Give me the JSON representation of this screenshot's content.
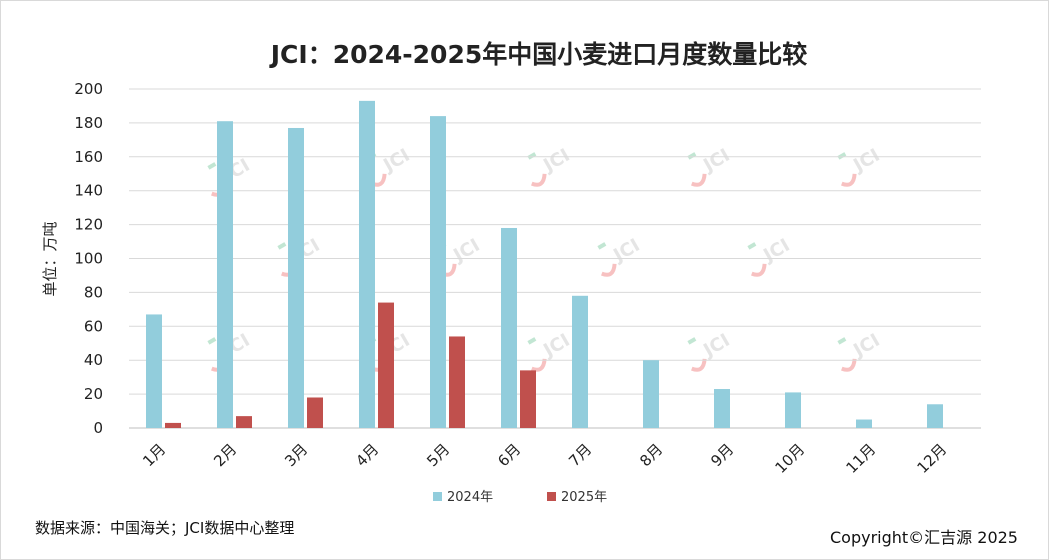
{
  "chart_data": {
    "type": "bar",
    "title": "JCI：2024-2025年中国小麦进口月度数量比较",
    "ylabel": "单位：万吨",
    "xlabel": "",
    "ylim": [
      0,
      200
    ],
    "yticks": [
      0,
      20,
      40,
      60,
      80,
      100,
      120,
      140,
      160,
      180,
      200
    ],
    "grid": true,
    "legend_position": "bottom",
    "categories": [
      "1月",
      "2月",
      "3月",
      "4月",
      "5月",
      "6月",
      "7月",
      "8月",
      "9月",
      "10月",
      "11月",
      "12月"
    ],
    "series": [
      {
        "name": "2024年",
        "color": "#92cddc",
        "values": [
          67,
          181,
          177,
          193,
          184,
          118,
          78,
          40,
          23,
          21,
          5,
          14
        ]
      },
      {
        "name": "2025年",
        "color": "#c0504d",
        "values": [
          3,
          7,
          18,
          74,
          54,
          34,
          null,
          null,
          null,
          null,
          null,
          null
        ]
      }
    ]
  },
  "footer": {
    "source": "数据来源：中国海关；JCI数据中心整理",
    "copyright": "Copyright©汇吉源 2025"
  },
  "watermark": {
    "text": "JCI"
  }
}
